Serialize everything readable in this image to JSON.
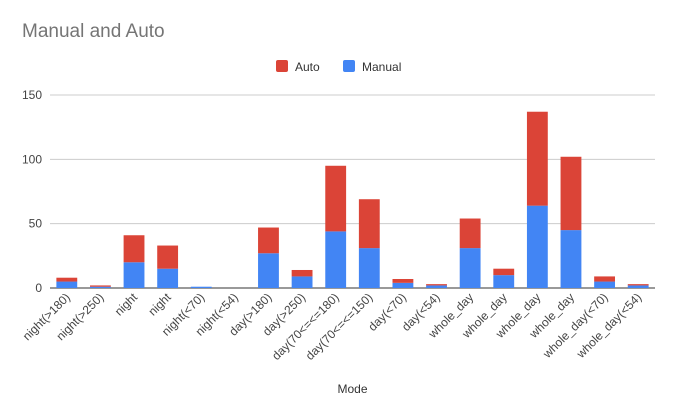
{
  "chart_data": {
    "type": "bar",
    "stacked": true,
    "title": "Manual and Auto",
    "xlabel": "Mode",
    "ylabel": "",
    "ylim": [
      0,
      150
    ],
    "yticks": [
      0,
      50,
      100,
      150
    ],
    "grid": true,
    "legend_position": "top",
    "categories": [
      "night(>180)",
      "night(>250)",
      "night",
      "night",
      "night(<70)",
      "night(<54)",
      "day(>180)",
      "day(>250)",
      "day(70<=<=180)",
      "day(70<=<=150)",
      "day(<70)",
      "day(<54)",
      "whole_day",
      "whole_day",
      "whole_day",
      "whole_day",
      "whole_day(<70)",
      "whole_day(<54)"
    ],
    "series": [
      {
        "name": "Manual",
        "color": "#4285f4",
        "values": [
          5,
          1,
          20,
          15,
          1,
          0,
          27,
          9,
          44,
          31,
          4,
          2,
          31,
          10,
          64,
          45,
          5,
          2
        ]
      },
      {
        "name": "Auto",
        "color": "#db4437",
        "values": [
          3,
          1,
          21,
          18,
          0,
          0,
          20,
          5,
          51,
          38,
          3,
          1,
          23,
          5,
          73,
          57,
          4,
          1
        ]
      }
    ]
  }
}
